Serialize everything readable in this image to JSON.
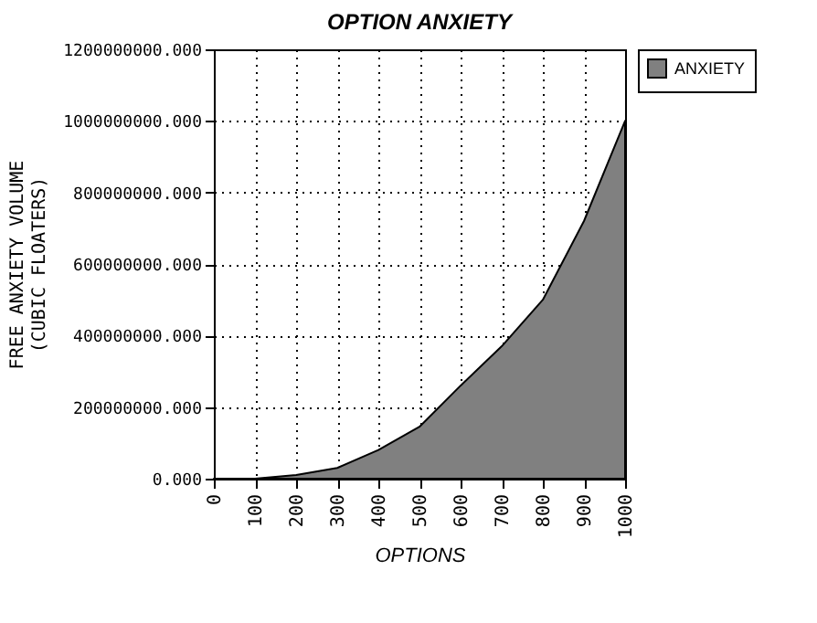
{
  "chart_data": {
    "type": "area",
    "title": "OPTION ANXIETY",
    "xlabel": "OPTIONS",
    "ylabel": "FREE ANXIETY VOLUME\n(CUBIC FLOATERS)",
    "x": [
      0,
      100,
      200,
      300,
      400,
      500,
      600,
      700,
      800,
      900,
      1000
    ],
    "series": [
      {
        "name": "ANXIETY",
        "color": "#808080",
        "values": [
          0,
          0,
          10000000,
          30000000,
          80000000,
          145000000,
          260000000,
          370000000,
          500000000,
          720000000,
          1000000000
        ]
      }
    ],
    "xlim": [
      0,
      1000
    ],
    "xticks": [
      0,
      100,
      200,
      300,
      400,
      500,
      600,
      700,
      800,
      900,
      1000
    ],
    "ylim": [
      0,
      1200000000
    ],
    "yticks": [
      {
        "value": 0,
        "label": "0.000"
      },
      {
        "value": 200000000,
        "label": "200000000.000"
      },
      {
        "value": 400000000,
        "label": "400000000.000"
      },
      {
        "value": 600000000,
        "label": "600000000.000"
      },
      {
        "value": 800000000,
        "label": "800000000.000"
      },
      {
        "value": 1000000000,
        "label": "1000000000.000"
      },
      {
        "value": 1200000000,
        "label": "1200000000.000"
      }
    ],
    "grid": true,
    "legend": "right"
  }
}
